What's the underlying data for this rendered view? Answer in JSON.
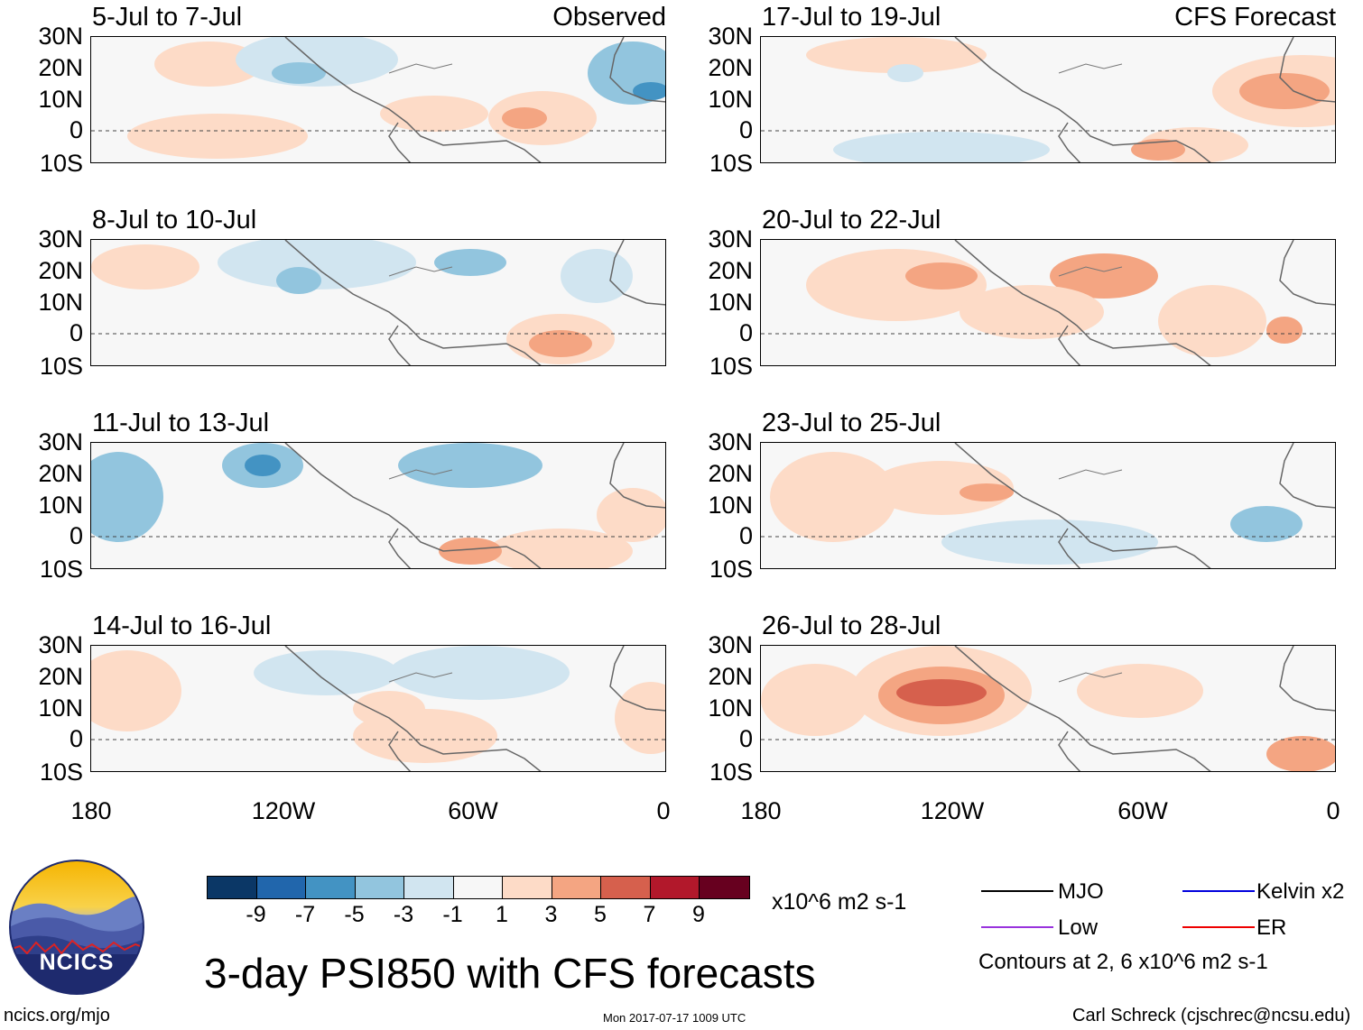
{
  "panels": [
    {
      "title": "5-Jul to 7-Jul",
      "tag": "Observed"
    },
    {
      "title": "8-Jul to 10-Jul",
      "tag": ""
    },
    {
      "title": "11-Jul to 13-Jul",
      "tag": ""
    },
    {
      "title": "14-Jul to 16-Jul",
      "tag": ""
    },
    {
      "title": "17-Jul to 19-Jul",
      "tag": "CFS Forecast"
    },
    {
      "title": "20-Jul to 22-Jul",
      "tag": ""
    },
    {
      "title": "23-Jul to 25-Jul",
      "tag": ""
    },
    {
      "title": "26-Jul to 28-Jul",
      "tag": ""
    }
  ],
  "axes": {
    "lat_labels": [
      "30N",
      "20N",
      "10N",
      "0",
      "10S"
    ],
    "lon_labels": [
      "180",
      "120W",
      "60W",
      "0"
    ]
  },
  "colorbar": {
    "colors": [
      "#0b3766",
      "#2166ac",
      "#4393c3",
      "#92c5de",
      "#d1e5f0",
      "#f7f7f7",
      "#fddbc7",
      "#f4a582",
      "#d6604d",
      "#b2182b",
      "#67001f"
    ],
    "ticks": [
      "-9",
      "-7",
      "-5",
      "-3",
      "-1",
      "1",
      "3",
      "5",
      "7",
      "9"
    ],
    "units": "x10^6 m2 s-1"
  },
  "legend": {
    "items": [
      {
        "label": "MJO",
        "color": "#000000"
      },
      {
        "label": "Kelvin x2",
        "color": "#0000dd"
      },
      {
        "label": "Low",
        "color": "#9933dd"
      },
      {
        "label": "ER",
        "color": "#ee0000"
      }
    ],
    "note": "Contours at 2, 6 x10^6 m2 s-1"
  },
  "title": "3-day PSI850 with CFS forecasts",
  "logo_text": "NCICS",
  "footer": {
    "left": "ncics.org/mjo",
    "center": "Mon 2017-07-17 1009 UTC",
    "right": "Carl Schreck (cjschrec@ncsu.edu)"
  }
}
